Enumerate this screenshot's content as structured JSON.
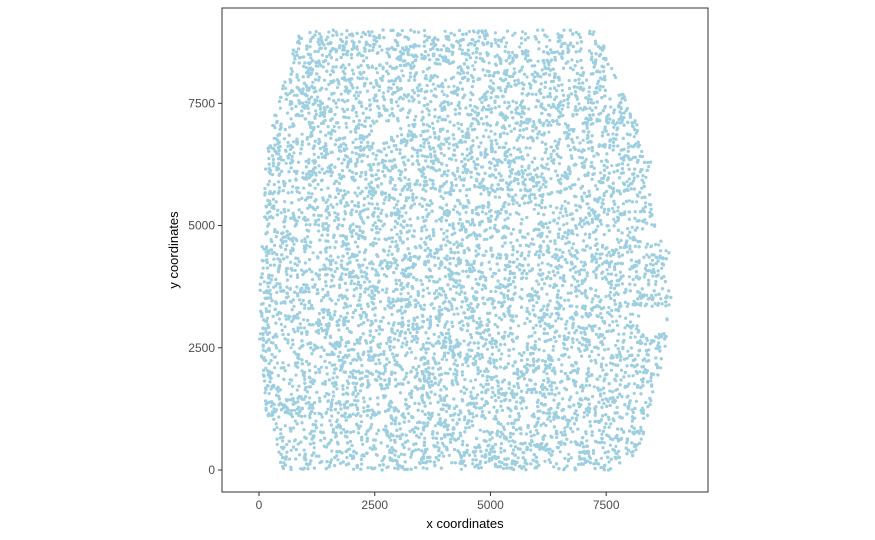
{
  "chart_data": {
    "type": "scatter",
    "title": "",
    "xlabel": "x coordinates",
    "ylabel": "y coordinates",
    "xlim": [
      -800,
      9700
    ],
    "ylim": [
      -450,
      9450
    ],
    "x_ticks": [
      0,
      2500,
      5000,
      7500
    ],
    "y_ticks": [
      0,
      2500,
      5000,
      7500
    ],
    "x_tick_labels": [
      "0",
      "2500",
      "5000",
      "7500"
    ],
    "y_tick_labels": [
      "0",
      "2500",
      "5000",
      "7500"
    ],
    "grid": false,
    "legend": "none",
    "point_color": "#9ecfe0",
    "series": [
      {
        "region_outline": [
          [
            500,
            0
          ],
          [
            7780,
            0
          ],
          [
            7800,
            150
          ],
          [
            8100,
            300
          ],
          [
            8300,
            600
          ],
          [
            8350,
            900
          ],
          [
            8500,
            1550
          ],
          [
            8750,
            2300
          ],
          [
            8800,
            2700
          ],
          [
            8900,
            3200
          ],
          [
            8900,
            3600
          ],
          [
            8700,
            4100
          ],
          [
            8800,
            4300
          ],
          [
            8900,
            4500
          ],
          [
            8600,
            4750
          ],
          [
            8450,
            5500
          ],
          [
            8500,
            6300
          ],
          [
            8300,
            6800
          ],
          [
            8000,
            7400
          ],
          [
            7800,
            7900
          ],
          [
            7500,
            8550
          ],
          [
            7300,
            9000
          ],
          [
            900,
            9000
          ],
          [
            700,
            8500
          ],
          [
            500,
            7800
          ],
          [
            250,
            7000
          ],
          [
            120,
            6000
          ],
          [
            100,
            5000
          ],
          [
            0,
            4000
          ],
          [
            0,
            3000
          ],
          [
            50,
            2000
          ],
          [
            150,
            1200
          ],
          [
            350,
            700
          ],
          [
            450,
            200
          ]
        ],
        "holes": [
          {
            "x": 2650,
            "y": 6900,
            "r": 220
          },
          {
            "x": 7250,
            "y": 6950,
            "r": 110
          },
          {
            "x": 8500,
            "y": 3050,
            "r": 300
          },
          {
            "x": 8450,
            "y": 4850,
            "r": 160
          },
          {
            "x": 900,
            "y": 4950,
            "r": 120
          },
          {
            "x": 4800,
            "y": 5550,
            "r": 90
          },
          {
            "x": 5700,
            "y": 1000,
            "r": 60
          },
          {
            "x": 2600,
            "y": 180,
            "r": 50
          },
          {
            "x": 3900,
            "y": 2400,
            "r": 50
          },
          {
            "x": 6500,
            "y": 3000,
            "r": 55
          },
          {
            "x": 1300,
            "y": 650,
            "r": 50
          }
        ]
      }
    ]
  }
}
